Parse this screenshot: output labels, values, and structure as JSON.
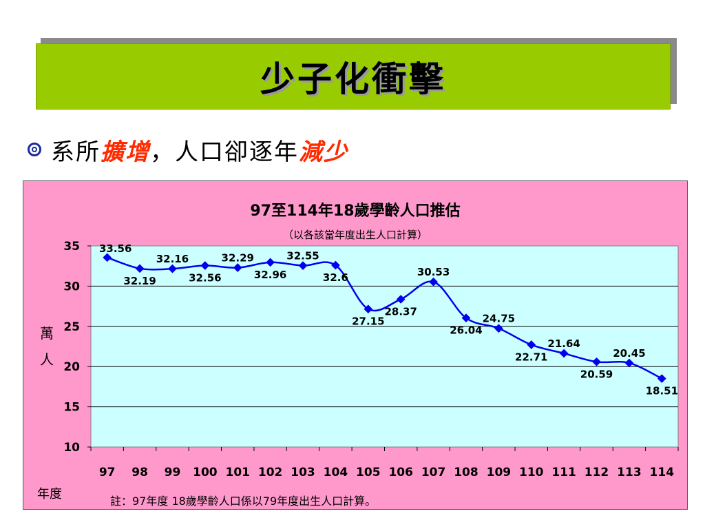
{
  "slide": {
    "title": "少子化衝擊",
    "bullet": {
      "part1": "系所",
      "highlight1": "擴增",
      "part2": "，人口卻逐年",
      "highlight2": "減少"
    },
    "note": "註：97年度 18歲學齡人口係以79年度出生人口計算。"
  },
  "chart_data": {
    "type": "line",
    "title": "97至114年18歲學齡人口推估",
    "subtitle": "（以各該當年度出生人口計算）",
    "ylabel": "萬人",
    "xlabel": "年度",
    "ylim": [
      10,
      35
    ],
    "yticks": [
      10,
      15,
      20,
      25,
      30,
      35
    ],
    "grid": true,
    "categories": [
      "97",
      "98",
      "99",
      "100",
      "101",
      "102",
      "103",
      "104",
      "105",
      "106",
      "107",
      "108",
      "109",
      "110",
      "111",
      "112",
      "113",
      "114"
    ],
    "series": [
      {
        "values": [
          33.56,
          32.19,
          32.16,
          32.56,
          32.29,
          32.96,
          32.55,
          32.6,
          27.15,
          28.37,
          30.53,
          26.04,
          24.75,
          22.71,
          21.64,
          20.59,
          20.45,
          18.51
        ],
        "labels": [
          "33.56",
          "32.19",
          "32.16",
          "32.56",
          "32.29",
          "32.96",
          "32.55",
          "32.6",
          "27.15",
          "28.37",
          "30.53",
          "26.04",
          "24.75",
          "22.71",
          "21.64",
          "20.59",
          "20.45",
          "18.51"
        ],
        "color": "#0000ee"
      }
    ],
    "colors": {
      "plot_bg": "#ccffff",
      "frame_bg": "#ff99cc",
      "title_bg": "#99cc00",
      "highlight": "#ff2a00"
    }
  }
}
